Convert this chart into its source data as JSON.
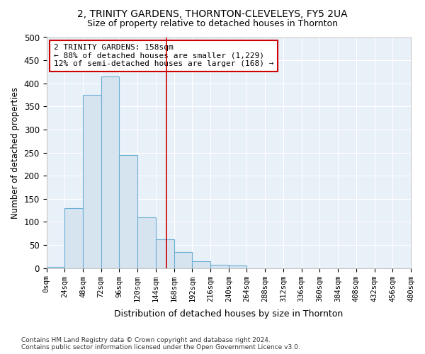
{
  "title": "2, TRINITY GARDENS, THORNTON-CLEVELEYS, FY5 2UA",
  "subtitle": "Size of property relative to detached houses in Thornton",
  "xlabel": "Distribution of detached houses by size in Thornton",
  "ylabel": "Number of detached properties",
  "bar_color": "#d6e4f0",
  "bar_edge_color": "#6baed6",
  "background_color": "#e8f0f8",
  "grid_color": "#ffffff",
  "bins": [
    0,
    24,
    48,
    72,
    96,
    120,
    144,
    168,
    192,
    216,
    240,
    264,
    288,
    312,
    336,
    360,
    384,
    408,
    432,
    456,
    480
  ],
  "counts": [
    3,
    130,
    375,
    415,
    245,
    110,
    63,
    35,
    15,
    7,
    6,
    0,
    0,
    0,
    0,
    0,
    0,
    0,
    0,
    0
  ],
  "property_size": 158,
  "annotation_line1": "2 TRINITY GARDENS: 158sqm",
  "annotation_line2": "← 88% of detached houses are smaller (1,229)",
  "annotation_line3": "12% of semi-detached houses are larger (168) →",
  "annotation_box_color": "#ffffff",
  "annotation_box_edge": "#cc0000",
  "vline_color": "#cc0000",
  "footer": "Contains HM Land Registry data © Crown copyright and database right 2024.\nContains public sector information licensed under the Open Government Licence v3.0.",
  "ylim": [
    0,
    500
  ],
  "yticks": [
    0,
    50,
    100,
    150,
    200,
    250,
    300,
    350,
    400,
    450,
    500
  ]
}
